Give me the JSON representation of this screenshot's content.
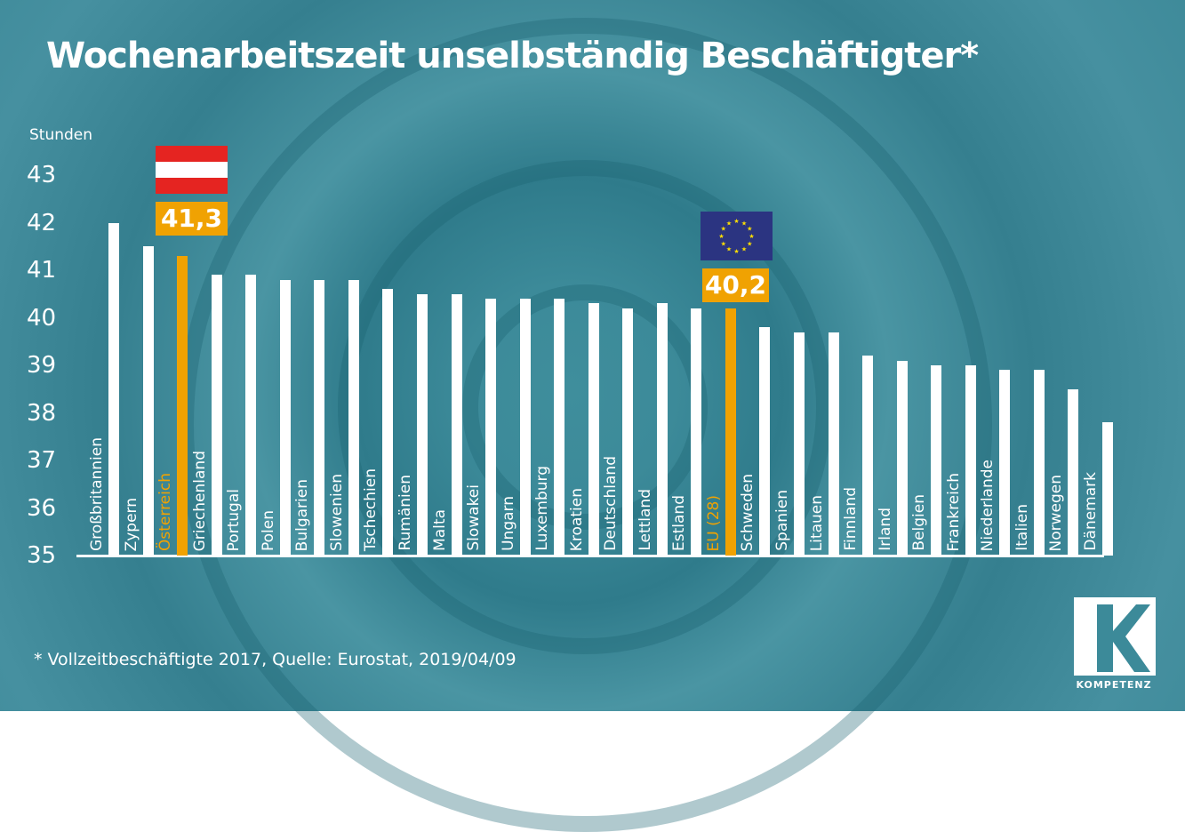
{
  "chart_data": {
    "type": "bar",
    "title": "Wochenarbeitszeit unselbständig Beschäftigter*",
    "ylabel": "Stunden",
    "xlabel": "",
    "ylim": [
      35,
      43
    ],
    "yticks": [
      "35",
      "36",
      "37",
      "38",
      "39",
      "40",
      "41",
      "42",
      "43"
    ],
    "categories": [
      "Großbritannien",
      "Zypern",
      "Österreich",
      "Griechenland",
      "Portugal",
      "Polen",
      "Bulgarien",
      "Slowenien",
      "Tschechien",
      "Rumänien",
      "Malta",
      "Slowakei",
      "Ungarn",
      "Luxemburg",
      "Kroatien",
      "Deutschland",
      "Lettland",
      "Estland",
      "EU (28)",
      "Schweden",
      "Spanien",
      "Litauen",
      "Finnland",
      "Irland",
      "Belgien",
      "Frankreich",
      "Niederlande",
      "Italien",
      "Norwegen",
      "Dänemark"
    ],
    "values": [
      42.0,
      41.5,
      41.3,
      40.9,
      40.9,
      40.8,
      40.8,
      40.8,
      40.6,
      40.5,
      40.5,
      40.4,
      40.4,
      40.4,
      40.3,
      40.2,
      40.3,
      40.2,
      40.2,
      39.8,
      39.7,
      39.7,
      39.2,
      39.1,
      39.0,
      39.0,
      38.9,
      38.9,
      38.5,
      37.8
    ],
    "highlighted": [
      "Österreich",
      "EU (28)"
    ],
    "annotations": [
      {
        "category": "Österreich",
        "label": "41,3"
      },
      {
        "category": "EU (28)",
        "label": "40,2"
      }
    ],
    "grid": false,
    "colors": {
      "bar": "#ffffff",
      "highlight": "#f0a202",
      "background": "#3c8a99"
    }
  },
  "footnote": "* Vollzeitbeschäftigte 2017, Quelle: Eurostat, 2019/04/09",
  "logo": "KOMPETENZ"
}
